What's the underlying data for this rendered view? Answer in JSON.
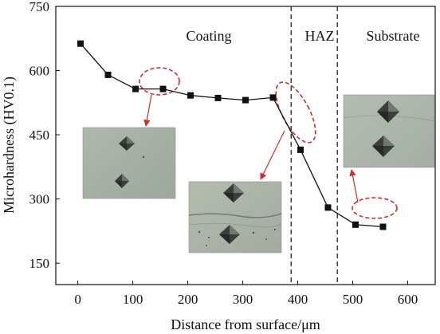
{
  "chart_data": {
    "type": "line",
    "xlabel": "Distance from surface/μm",
    "ylabel": "Microhardness (HV0.1)",
    "xlim": [
      -40,
      650
    ],
    "ylim": [
      100,
      750
    ],
    "xticks": [
      0,
      100,
      200,
      300,
      400,
      500,
      600
    ],
    "yticks": [
      150,
      300,
      450,
      600,
      750
    ],
    "grid": false,
    "legend": "none",
    "series": [
      {
        "x": [
          5,
          55,
          105,
          155,
          205,
          255,
          305,
          355,
          405,
          455,
          505,
          555
        ],
        "y": [
          663,
          590,
          557,
          557,
          542,
          536,
          531,
          537,
          415,
          280,
          240,
          235
        ]
      }
    ],
    "regions": [
      {
        "label": "Coating",
        "x_center": 240
      },
      {
        "label": "HAZ",
        "x_center": 430
      },
      {
        "label": "Substrate",
        "x_center": 560
      }
    ],
    "boundaries_x": [
      388,
      472
    ],
    "highlighted_points": [
      [
        105,
        557
      ],
      [
        155,
        557
      ],
      [
        355,
        537
      ],
      [
        405,
        415
      ],
      [
        505,
        240
      ],
      [
        555,
        235
      ]
    ],
    "insets": [
      {
        "name": "coating-micrograph",
        "description_for_style_only": "indentations"
      },
      {
        "name": "interface-micrograph"
      },
      {
        "name": "substrate-micrograph"
      }
    ]
  },
  "colors": {
    "line": "#111111",
    "marker": "#111111",
    "annotation": "#d42a2a",
    "boundary": "#333333",
    "micrograph_bg": "#a9b3a8"
  }
}
